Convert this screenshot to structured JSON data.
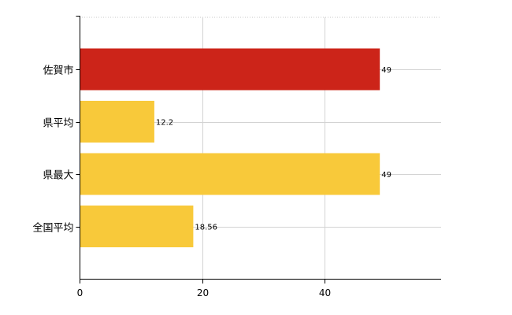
{
  "chart_data": {
    "type": "bar",
    "orientation": "horizontal",
    "categories": [
      "佐賀市",
      "県平均",
      "県最大",
      "全国平均"
    ],
    "values": [
      49,
      12.2,
      49,
      18.56
    ],
    "data_labels": [
      "49",
      "12.2",
      "49",
      "18.56"
    ],
    "bar_colors": [
      "#cc2419",
      "#f8c93a",
      "#f8c93a",
      "#f8c93a"
    ],
    "xlim": [
      0,
      59
    ],
    "xticks": [
      0,
      20,
      40
    ],
    "xtick_labels": [
      "0",
      "20",
      "40"
    ],
    "grid": true,
    "legend": "none"
  }
}
